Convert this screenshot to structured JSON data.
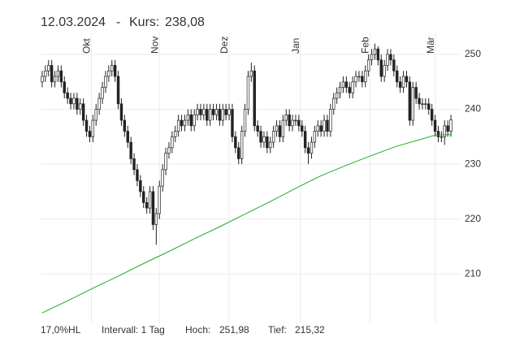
{
  "chart_data": {
    "type": "candlestick",
    "date": "12.03.2024",
    "separator": "-",
    "price_label": "Kurs:",
    "price": "238,08",
    "footer": {
      "hl": "17,0%HL",
      "interval": "Intervall: 1 Tag",
      "high_label": "Hoch:",
      "high": "251,98",
      "low_label": "Tief:",
      "low": "215,32"
    },
    "xlim": [
      0,
      130
    ],
    "xticks": [
      {
        "value": 16,
        "label": "Okt"
      },
      {
        "value": 37.5,
        "label": "Nov"
      },
      {
        "value": 59.5,
        "label": "Dez"
      },
      {
        "value": 82,
        "label": "Jan"
      },
      {
        "value": 104,
        "label": "Feb"
      },
      {
        "value": 124.6,
        "label": "Mär"
      }
    ],
    "ylim": [
      201,
      254
    ],
    "yticks": [
      210,
      220,
      230,
      240,
      250
    ],
    "grid": true,
    "up_color": "#ffffff",
    "down_color": "#222222",
    "wick_color": "#222222",
    "open": [
      245,
      246,
      247,
      248,
      245,
      246,
      247,
      245,
      243,
      242,
      241,
      242,
      240,
      241,
      238,
      236,
      235,
      238,
      240,
      242,
      244,
      246,
      247,
      248,
      246,
      241,
      238,
      236,
      234,
      231,
      229,
      227,
      225,
      223,
      222,
      225,
      219,
      221,
      226,
      229,
      232,
      233,
      235,
      236,
      238,
      237,
      238,
      239,
      237,
      239,
      240,
      239,
      240,
      238,
      240,
      239,
      240,
      238,
      240,
      239,
      240,
      235,
      233,
      231,
      236,
      240,
      246,
      247,
      237,
      236,
      234,
      235,
      233,
      234,
      236,
      237,
      235,
      238,
      239,
      237,
      238,
      238,
      237,
      236,
      233,
      232,
      234,
      236,
      237,
      236,
      238,
      236,
      240,
      242,
      243,
      244,
      245,
      244,
      243,
      245,
      246,
      246,
      245,
      247,
      249,
      250,
      251,
      249,
      246,
      248,
      250,
      249,
      247,
      245,
      244,
      246,
      245,
      238,
      244,
      242,
      241,
      241,
      241,
      240,
      238,
      236,
      235,
      235,
      237,
      236
    ],
    "high": [
      247,
      248,
      249,
      249,
      247,
      248,
      248,
      246,
      244,
      243,
      243,
      243,
      242,
      242,
      239,
      237,
      239,
      241,
      243,
      245,
      247,
      248,
      249,
      249,
      247,
      242,
      239,
      237,
      235,
      232,
      230,
      228,
      226,
      224,
      226,
      226,
      222,
      227,
      230,
      233,
      234,
      236,
      237,
      239,
      239,
      239,
      240,
      240,
      240,
      241,
      241,
      241,
      241,
      241,
      241,
      241,
      241,
      241,
      241,
      241,
      241,
      236,
      234,
      237,
      241,
      247,
      248.5,
      248,
      238,
      237,
      236,
      236,
      235,
      237,
      238,
      238,
      239,
      240,
      240,
      239,
      239,
      239,
      238,
      237,
      234,
      235,
      237,
      238,
      238,
      239,
      239,
      241,
      243,
      244,
      245,
      246,
      246,
      245,
      246,
      247,
      247,
      247,
      248,
      250,
      251,
      251.98,
      251.5,
      250,
      249,
      251,
      251,
      250,
      248,
      246,
      247,
      247,
      246,
      245,
      245,
      243,
      242,
      242,
      242,
      241,
      239,
      237,
      236,
      238,
      238,
      239
    ],
    "low": [
      244,
      245,
      246,
      244,
      244,
      245,
      244,
      242,
      241,
      240,
      240,
      239,
      239,
      237,
      235,
      234,
      234,
      237,
      239,
      241,
      243,
      245,
      246,
      245,
      240,
      237,
      235,
      233,
      230,
      228,
      226,
      224,
      222,
      221,
      221,
      218,
      215.32,
      220,
      225,
      228,
      231,
      232,
      234,
      235,
      236,
      236,
      237,
      236,
      236,
      238,
      238,
      238,
      237,
      237,
      238,
      238,
      237,
      237,
      238,
      238,
      234,
      232,
      230,
      230,
      235,
      239,
      245,
      236,
      235,
      233,
      233,
      232,
      232,
      233,
      235,
      234,
      234,
      237,
      236,
      236,
      237,
      236,
      235,
      232,
      230,
      231,
      233,
      235,
      235,
      235,
      235,
      235,
      239,
      241,
      242,
      243,
      243,
      242,
      242,
      244,
      245,
      244,
      244,
      246,
      248,
      249,
      248,
      245,
      245,
      247,
      248,
      246,
      244,
      243,
      243,
      244,
      237,
      237,
      241,
      240,
      240,
      240,
      239,
      237,
      235,
      234,
      234,
      233.5,
      235,
      235
    ],
    "close": [
      246,
      247,
      248,
      245,
      246,
      247,
      245,
      243,
      242,
      241,
      242,
      240,
      241,
      238,
      236,
      235,
      238,
      240,
      242,
      244,
      246,
      247,
      248,
      246,
      241,
      238,
      236,
      234,
      231,
      229,
      227,
      225,
      223,
      222,
      225,
      219,
      221,
      226,
      229,
      232,
      233,
      235,
      236,
      238,
      237,
      238,
      239,
      237,
      239,
      240,
      239,
      240,
      238,
      240,
      239,
      240,
      238,
      240,
      239,
      240,
      235,
      233,
      231,
      236,
      240,
      246,
      247,
      237,
      236,
      234,
      235,
      233,
      234,
      236,
      237,
      235,
      238,
      239,
      237,
      238,
      238,
      237,
      236,
      233,
      232,
      234,
      236,
      237,
      236,
      238,
      236,
      240,
      242,
      243,
      244,
      245,
      244,
      243,
      245,
      246,
      246,
      245,
      247,
      249,
      250,
      251,
      249,
      246,
      248,
      250,
      249,
      247,
      245,
      244,
      246,
      245,
      238,
      244,
      242,
      241,
      241,
      241,
      240,
      238,
      236,
      235,
      235,
      237,
      236,
      238.08
    ],
    "ma": {
      "color": "#22aa22",
      "x": [
        0,
        8,
        16,
        24,
        32,
        40,
        48,
        56,
        64,
        72,
        80,
        88,
        96,
        104,
        112,
        120,
        124,
        129
      ],
      "values": [
        202.9,
        205.1,
        207.4,
        209.6,
        211.9,
        214.1,
        216.4,
        218.6,
        220.9,
        223.2,
        225.6,
        227.9,
        229.8,
        231.6,
        233.3,
        234.6,
        235.3,
        235.4
      ]
    }
  }
}
